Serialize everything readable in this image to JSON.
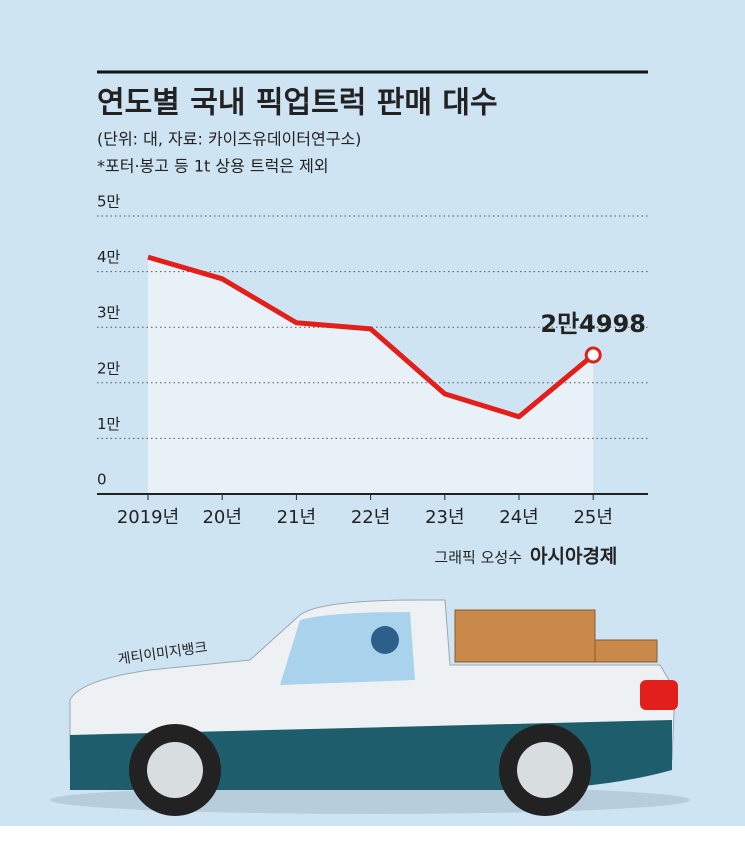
{
  "chart_data": {
    "type": "line",
    "title": "연도별 국내 픽업트럭 판매 대수",
    "subtitle": "(단위: 대, 자료: 카이즈유데이터연구소)",
    "note": "*포터·봉고 등 1t 상용 트럭은 제외",
    "credit": "그래픽 오성수",
    "publisher": "아시아경제",
    "photo_credit": "게티이미지뱅크",
    "categories": [
      "2019년",
      "20년",
      "21년",
      "22년",
      "23년",
      "24년",
      "25년"
    ],
    "series": [
      {
        "name": "판매 대수",
        "color": "#e21f1b",
        "values": [
          42600,
          38700,
          30800,
          29700,
          18000,
          13900,
          24998
        ],
        "value_labels": [
          null,
          null,
          null,
          null,
          null,
          null,
          "2만4998"
        ]
      }
    ],
    "ylim": [
      0,
      50000
    ],
    "yticks": [
      0,
      {
        "value": 10000,
        "label": "1만"
      },
      {
        "value": 20000,
        "label": "2만"
      },
      {
        "value": 30000,
        "label": "3만"
      },
      {
        "value": 40000,
        "label": "4만"
      },
      {
        "value": 50000,
        "label": "5만"
      }
    ],
    "grid": true
  }
}
